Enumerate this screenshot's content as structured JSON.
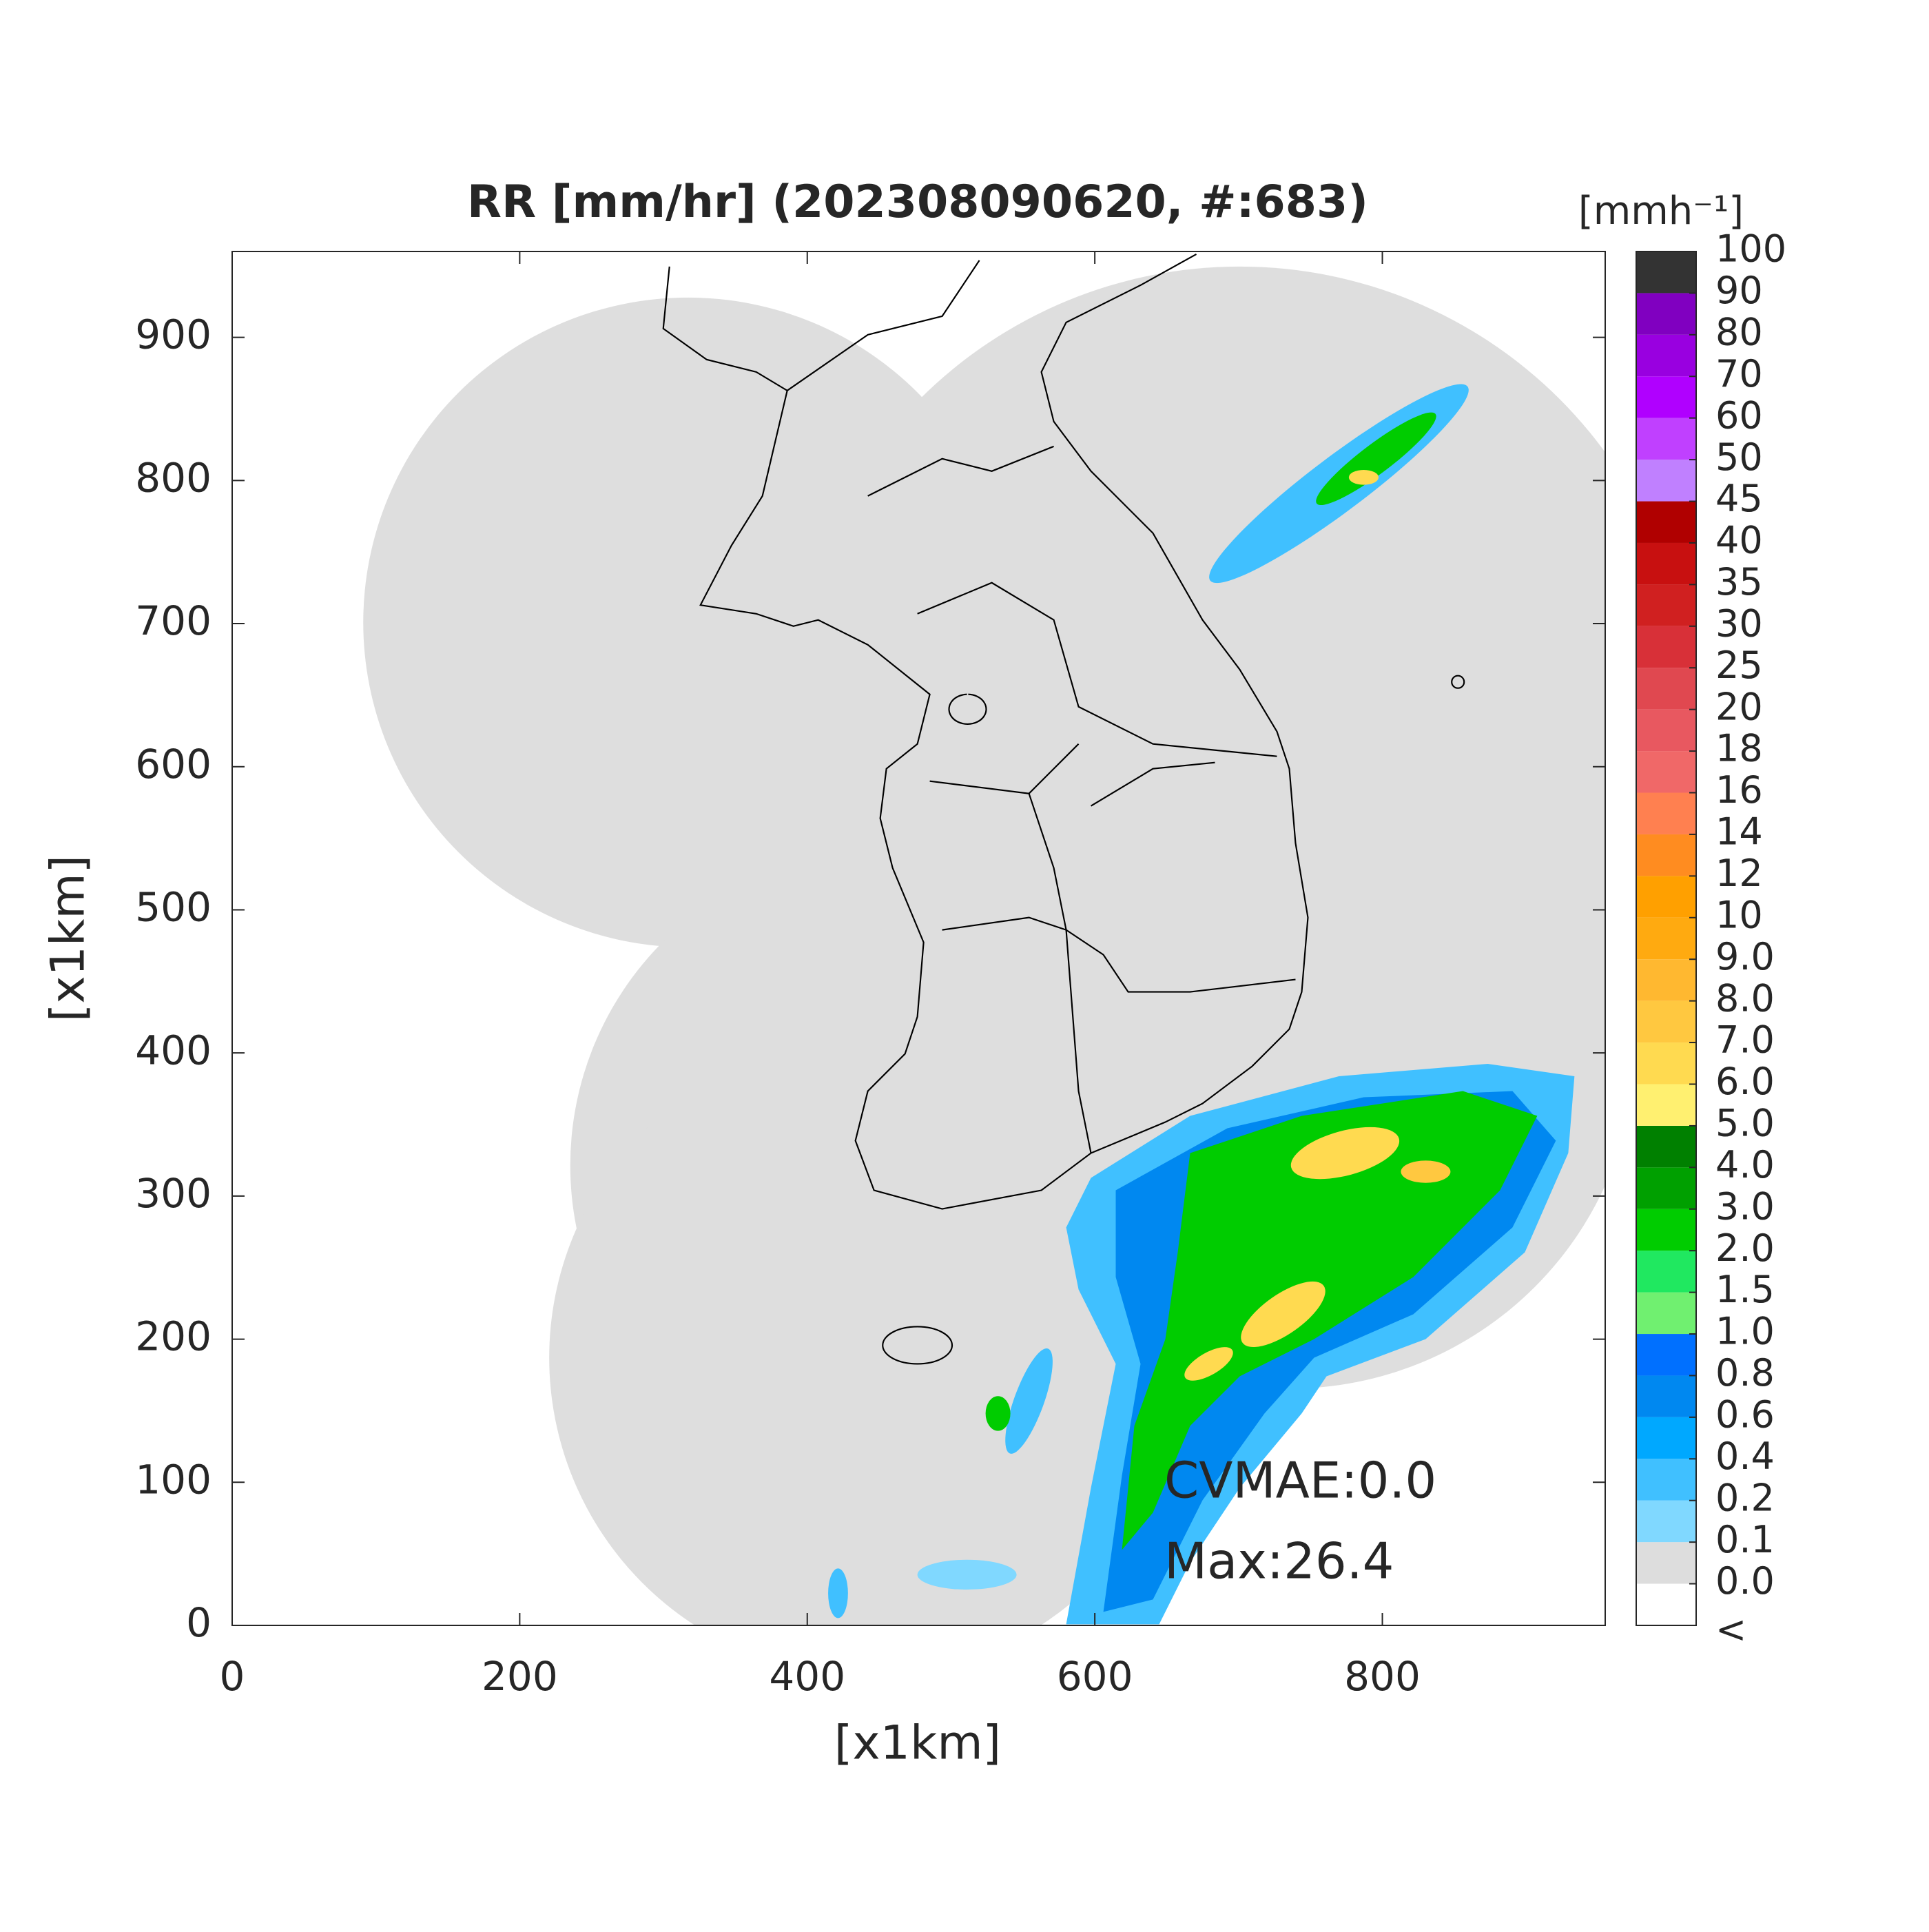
{
  "chart_data": {
    "type": "radar-map",
    "title": "RR [mm/hr] (202308090620, #:683)",
    "x_label": "[x1km]",
    "y_label": "[x1km]",
    "xlim": [
      0,
      955
    ],
    "ylim": [
      0,
      960
    ],
    "xticks": [
      0,
      200,
      400,
      600,
      800
    ],
    "yticks": [
      0,
      100,
      200,
      300,
      400,
      500,
      600,
      700,
      800,
      900
    ],
    "annotations": [
      "CVMAE:0.0",
      "Max:26.4"
    ],
    "colorbar": {
      "label": "[mmh⁻¹]",
      "under_label": "<",
      "under_color": "#ffffff",
      "ticks": [
        {
          "value": 0,
          "label": "0.0"
        },
        0.1,
        0.2,
        0.4,
        0.6,
        0.8,
        {
          "value": 1,
          "label": "1.0"
        },
        1.5,
        {
          "value": 2,
          "label": "2.0"
        },
        {
          "value": 3,
          "label": "3.0"
        },
        {
          "value": 4,
          "label": "4.0"
        },
        {
          "value": 5,
          "label": "5.0"
        },
        {
          "value": 6,
          "label": "6.0"
        },
        {
          "value": 7,
          "label": "7.0"
        },
        {
          "value": 8,
          "label": "8.0"
        },
        {
          "value": 9,
          "label": "9.0"
        },
        10,
        12,
        14,
        16,
        18,
        20,
        25,
        30,
        35,
        40,
        45,
        50,
        60,
        70,
        80,
        90,
        100
      ],
      "colors": [
        "#dddddd",
        "#80d8ff",
        "#40c0ff",
        "#00a8ff",
        "#0088f0",
        "#0070ff",
        "#70f070",
        "#20e860",
        "#00cc00",
        "#00a000",
        "#008000",
        "#fff070",
        "#ffda50",
        "#ffc840",
        "#ffb830",
        "#ffaa10",
        "#ffa000",
        "#ff8c20",
        "#ff8050",
        "#f06868",
        "#e85860",
        "#e04850",
        "#d83038",
        "#d02020",
        "#c81010",
        "#b00000",
        "#c080ff",
        "#c040ff",
        "#b000ff",
        "#9900e0",
        "#8000c0",
        "#333333"
      ]
    }
  }
}
